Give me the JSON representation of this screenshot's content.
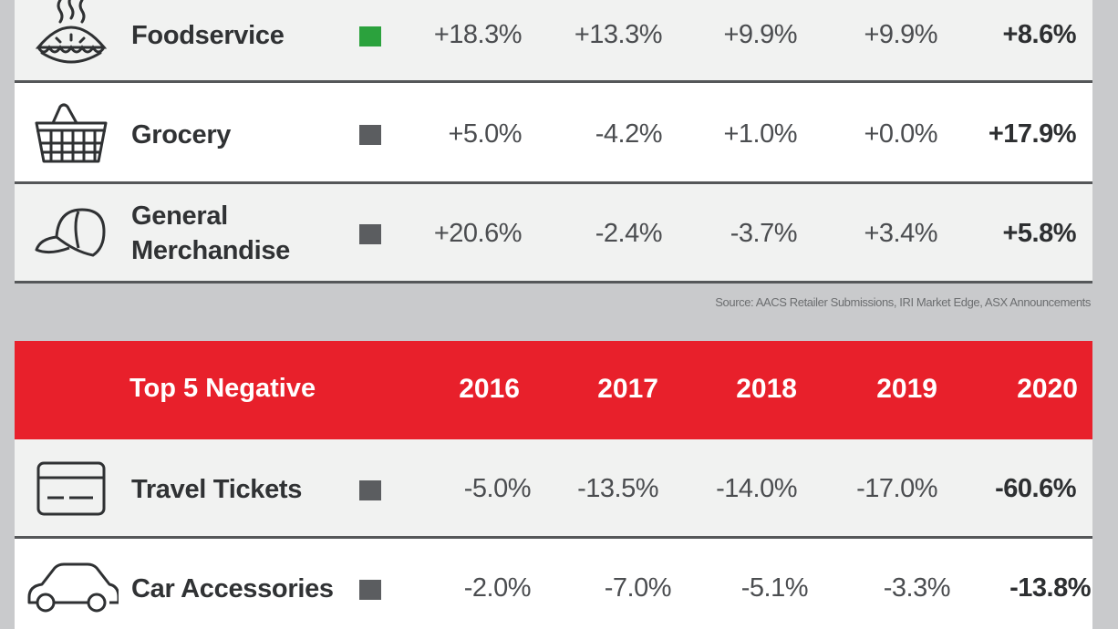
{
  "chart_data": {
    "type": "table",
    "columns": [
      "2016",
      "2017",
      "2018",
      "2019",
      "2020"
    ],
    "top_section_rows": [
      {
        "name": "Foodservice",
        "swatch_color": "#2ba23d",
        "icon": "pie-icon",
        "values": [
          "+18.3%",
          "+13.3%",
          "+9.9%",
          "+9.9%",
          "+8.6%"
        ]
      },
      {
        "name": "Grocery",
        "swatch_color": "#5b5d60",
        "icon": "basket-icon",
        "values": [
          "+5.0%",
          "-4.2%",
          "+1.0%",
          "+0.0%",
          "+17.9%"
        ]
      },
      {
        "name_line1": "General",
        "name_line2": "Merchandise",
        "swatch_color": "#5b5d60",
        "icon": "cap-icon",
        "values": [
          "+20.6%",
          "-2.4%",
          "-3.7%",
          "+3.4%",
          "+5.8%"
        ]
      }
    ],
    "source": "Source: AACS Retailer Submissions, IRI Market Edge, ASX Announcements",
    "negative_section": {
      "title": "Top 5 Negative",
      "years": [
        "2016",
        "2017",
        "2018",
        "2019",
        "2020"
      ],
      "rows": [
        {
          "name": "Travel Tickets",
          "swatch_color": "#5b5d60",
          "icon": "ticket-icon",
          "values": [
            "-5.0%",
            "-13.5%",
            "-14.0%",
            "-17.0%",
            "-60.6%"
          ]
        },
        {
          "name": "Car Accessories",
          "swatch_color": "#5b5d60",
          "icon": "car-icon",
          "values": [
            "-2.0%",
            "-7.0%",
            "-5.1%",
            "-3.3%",
            "-13.8%"
          ]
        }
      ]
    }
  }
}
